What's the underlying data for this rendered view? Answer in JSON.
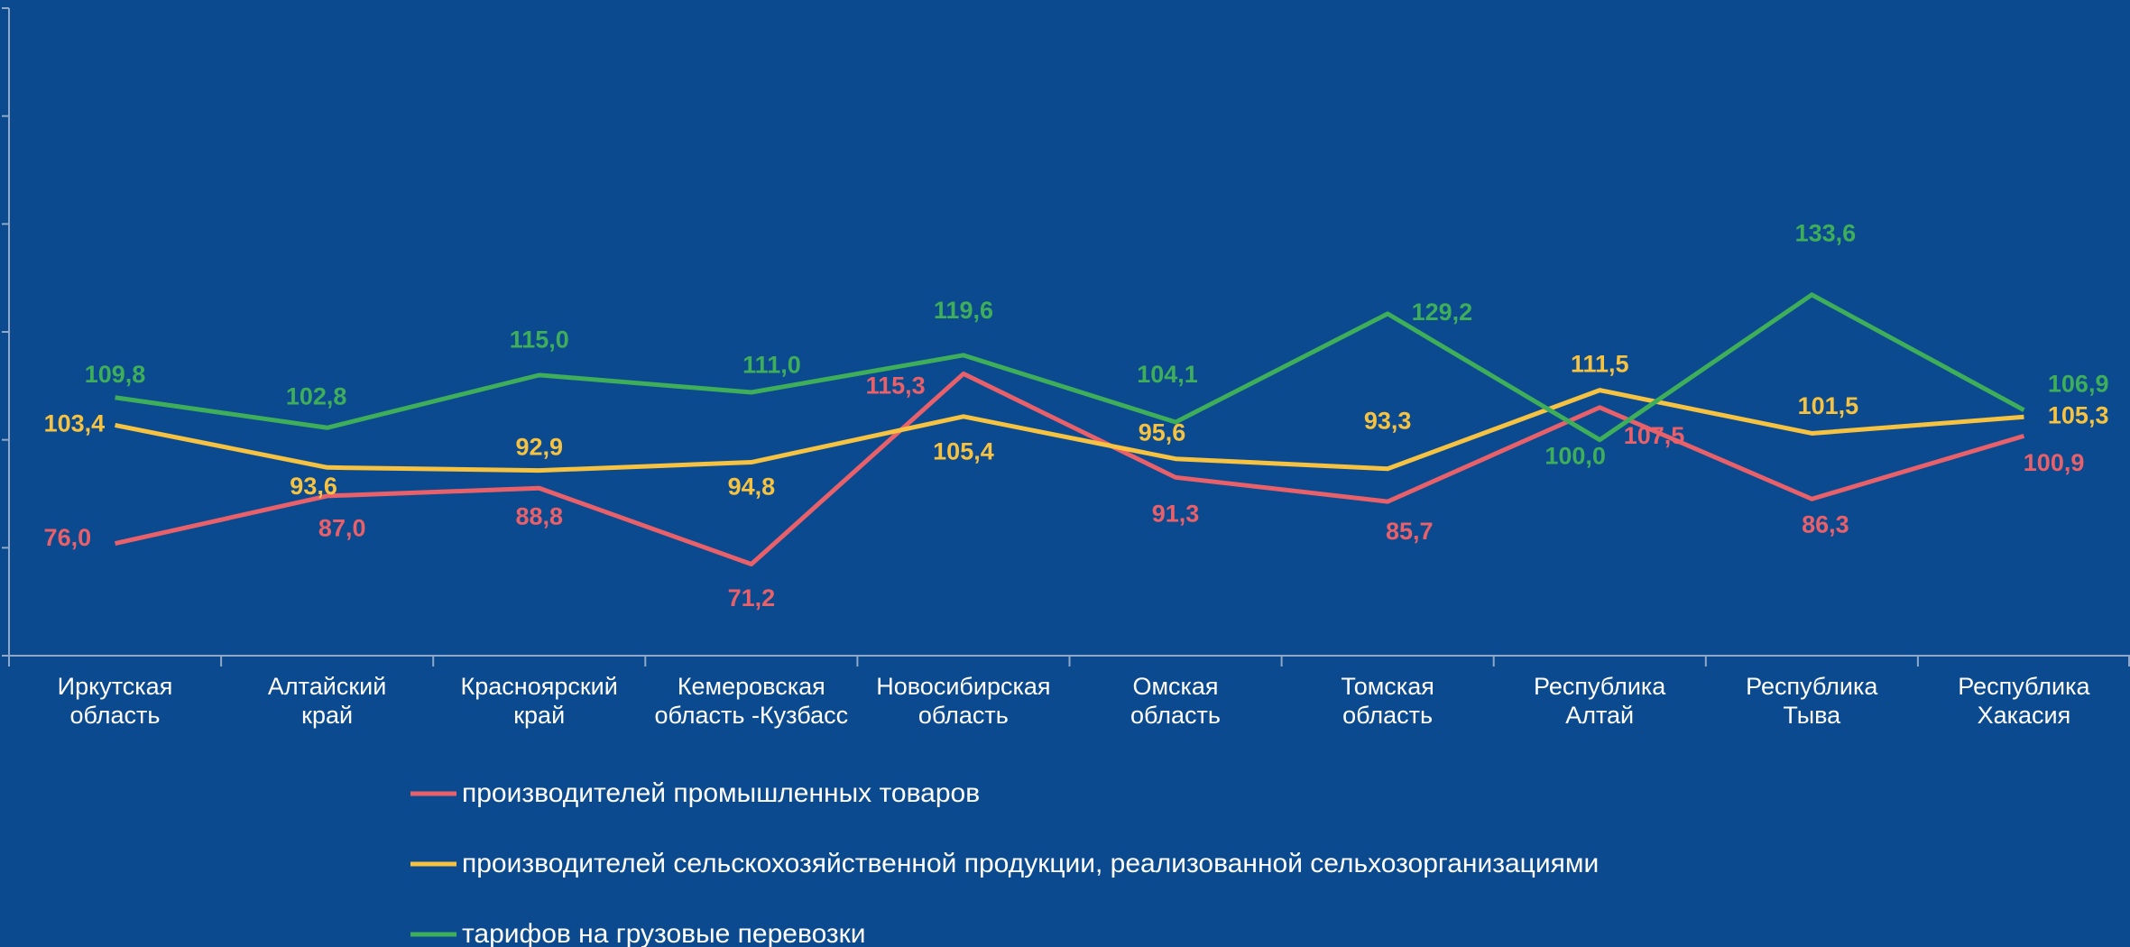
{
  "chart_data": {
    "type": "line",
    "categories": [
      "Иркутская\nобласть",
      "Алтайский\nкрай",
      "Красноярский\nкрай",
      "Кемеровская\nобласть -Кузбасс",
      "Новосибирская\nобласть",
      "Омская\nобласть",
      "Томская\nобласть",
      "Республика\nАлтай",
      "Республика\nТыва",
      "Республика\nХакасия"
    ],
    "series": [
      {
        "name": "производителей промышленных товаров",
        "color": "#e8606a",
        "values": [
          76.0,
          87.0,
          88.8,
          71.2,
          115.3,
          91.3,
          85.7,
          107.5,
          86.3,
          100.9
        ],
        "value_labels": [
          "76,0",
          "87,0",
          "88,8",
          "71,2",
          "115,3",
          "91,3",
          "85,7",
          "107,5",
          "86,3",
          "100,9"
        ]
      },
      {
        "name": "производителей сельскохозяйственной продукции, реализованной сельхозорганизациями",
        "color": "#f5c242",
        "values": [
          103.4,
          93.6,
          92.9,
          94.8,
          105.4,
          95.6,
          93.3,
          111.5,
          101.5,
          105.3
        ],
        "value_labels": [
          "103,4",
          "93,6",
          "92,9",
          "94,8",
          "105,4",
          "95,6",
          "93,3",
          "111,5",
          "101,5",
          "105,3"
        ]
      },
      {
        "name": "тарифов на грузовые перевозки",
        "color": "#3fae5a",
        "values": [
          109.8,
          102.8,
          115.0,
          111.0,
          119.6,
          104.1,
          129.2,
          100.0,
          133.6,
          106.9
        ],
        "value_labels": [
          "109,8",
          "102,8",
          "115,0",
          "111,0",
          "119,6",
          "104,1",
          "129,2",
          "100,0",
          "133,6",
          "106,9"
        ]
      }
    ],
    "ylim": [
      50,
      200
    ],
    "yticks": [
      50,
      75,
      100,
      125,
      150,
      175,
      200
    ]
  }
}
